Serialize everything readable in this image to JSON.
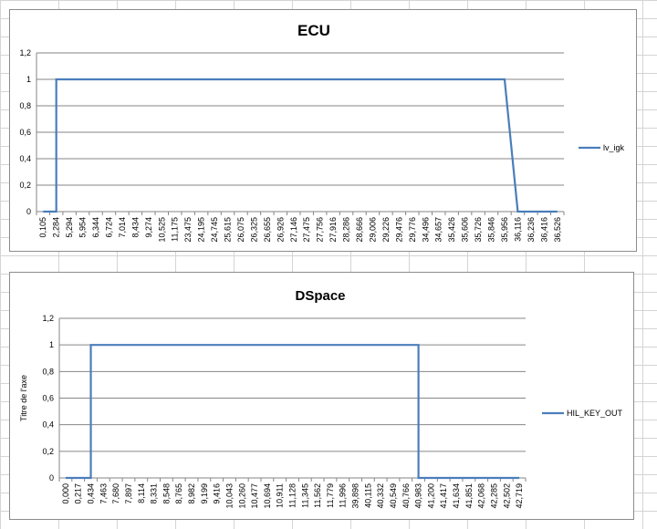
{
  "chart_data": [
    {
      "type": "line",
      "title": "ECU",
      "xlabel": "",
      "ylabel": "",
      "ylim": [
        0,
        1.2
      ],
      "y_ticks": [
        "0",
        "0,2",
        "0,4",
        "0,6",
        "0,8",
        "1",
        "1,2"
      ],
      "categories": [
        "0,105",
        "2,284",
        "5,294",
        "5,954",
        "6,344",
        "6,724",
        "7,014",
        "8,434",
        "9,274",
        "10,525",
        "11,175",
        "23,475",
        "24,195",
        "24,745",
        "25,615",
        "26,075",
        "26,325",
        "26,655",
        "26,926",
        "27,146",
        "27,475",
        "27,756",
        "27,916",
        "28,286",
        "28,666",
        "29,006",
        "29,226",
        "29,476",
        "29,776",
        "34,496",
        "34,657",
        "35,426",
        "35,606",
        "35,726",
        "35,846",
        "35,956",
        "36,116",
        "36,236",
        "36,416",
        "36,526"
      ],
      "series": [
        {
          "name": "lv_igk",
          "color": "#4a7ebb",
          "points": [
            [
              0,
              0
            ],
            [
              1,
              0
            ],
            [
              1,
              1
            ],
            [
              35,
              1
            ],
            [
              36,
              0
            ],
            [
              39,
              0
            ]
          ]
        }
      ],
      "legend_position": "right",
      "grid": true
    },
    {
      "type": "line",
      "title": "DSpace",
      "xlabel": "",
      "ylabel": "Titre de l'axe",
      "ylim": [
        0,
        1.2
      ],
      "y_ticks": [
        "0",
        "0,2",
        "0,4",
        "0,6",
        "0,8",
        "1",
        "1,2"
      ],
      "categories": [
        "0,000",
        "0,217",
        "0,434",
        "7,463",
        "7,680",
        "7,897",
        "8,114",
        "8,331",
        "8,548",
        "8,765",
        "8,982",
        "9,199",
        "9,416",
        "10,043",
        "10,260",
        "10,477",
        "10,694",
        "10,911",
        "11,128",
        "11,345",
        "11,562",
        "11,779",
        "11,996",
        "39,898",
        "40,115",
        "40,332",
        "40,549",
        "40,766",
        "40,983",
        "41,200",
        "41,417",
        "41,634",
        "41,851",
        "42,068",
        "42,285",
        "42,502",
        "42,719"
      ],
      "series": [
        {
          "name": "HIL_KEY_OUT",
          "color": "#4a7ebb",
          "points": [
            [
              0,
              0
            ],
            [
              2,
              0
            ],
            [
              2,
              1
            ],
            [
              28,
              1
            ],
            [
              28,
              0
            ],
            [
              36,
              0
            ]
          ]
        }
      ],
      "legend_position": "right",
      "grid": true
    }
  ]
}
